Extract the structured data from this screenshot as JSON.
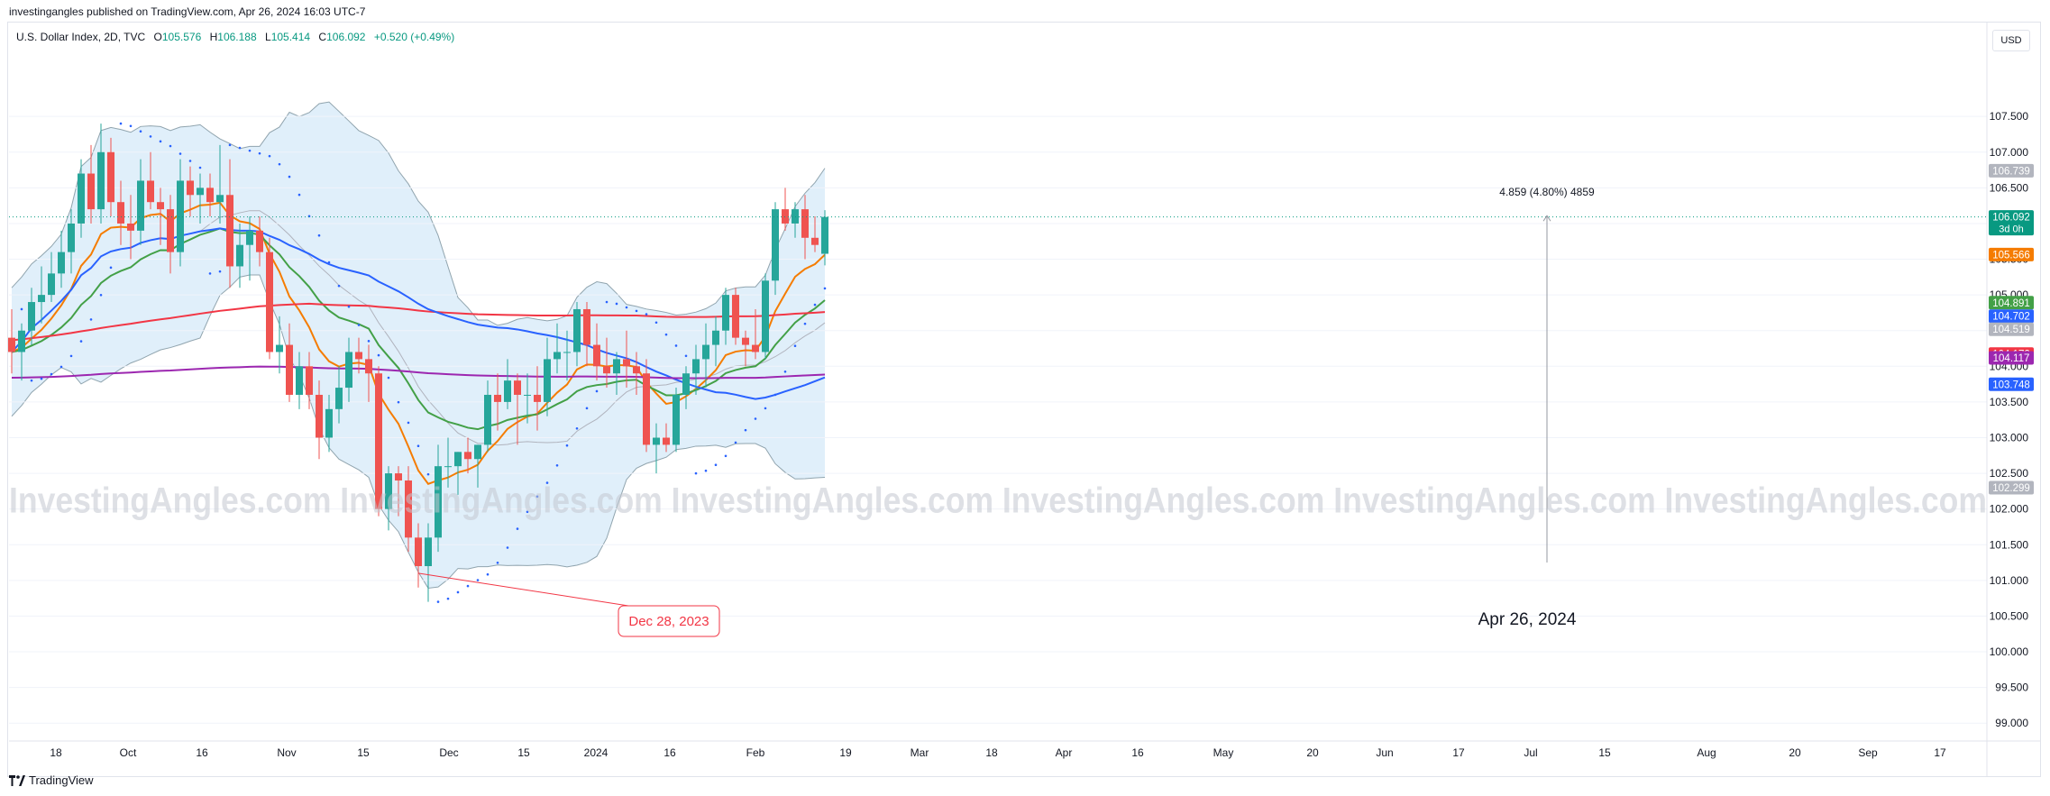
{
  "header": {
    "published": "investingangles published on TradingView.com, Apr 26, 2024 16:03 UTC-7"
  },
  "legend": {
    "symbol": "U.S. Dollar Index, 2D, TVC",
    "o_label": "O",
    "o": "105.576",
    "h_label": "H",
    "h": "106.188",
    "l_label": "L",
    "l": "105.414",
    "c_label": "C",
    "c": "106.092",
    "change": "+0.520 (+0.49%)"
  },
  "currency_button": "USD",
  "footer": {
    "brand": "TradingView"
  },
  "chart_data": {
    "type": "candlestick",
    "timeframe": "2D",
    "watermark": "InvestingAngles.com",
    "x_tick_labels": [
      "18",
      "Oct",
      "16",
      "Nov",
      "15",
      "Dec",
      "15",
      "2024",
      "16",
      "Feb",
      "19",
      "Mar",
      "18",
      "Apr",
      "16",
      "May",
      "20",
      "Jun",
      "17",
      "Jul",
      "15",
      "Aug",
      "20",
      "Sep",
      "17"
    ],
    "y_tick_labels": [
      "107.500",
      "107.000",
      "106.500",
      "106.000",
      "105.500",
      "105.000",
      "104.500",
      "104.000",
      "103.500",
      "103.000",
      "102.500",
      "102.000",
      "101.500",
      "101.000",
      "100.500",
      "100.000",
      "99.500",
      "99.000"
    ],
    "ylim": [
      98.75,
      108.5
    ],
    "price_tags": [
      {
        "value": "106.739",
        "color": "#b2b5be"
      },
      {
        "value": "106.092",
        "sub": "3d 0h",
        "color": "#089981"
      },
      {
        "value": "105.566",
        "color": "#f57c00"
      },
      {
        "value": "104.891",
        "color": "#43a047"
      },
      {
        "value": "104.702",
        "color": "#2962ff"
      },
      {
        "value": "104.519",
        "color": "#b2b5be"
      },
      {
        "value": "104.172",
        "color": "#f23645"
      },
      {
        "value": "104.117",
        "color": "#9c27b0"
      },
      {
        "value": "103.748",
        "color": "#2962ff"
      },
      {
        "value": "102.299",
        "color": "#b2b5be"
      }
    ],
    "candles": [
      [
        104.4,
        104.8,
        103.9,
        104.2
      ],
      [
        104.2,
        104.6,
        103.8,
        104.5
      ],
      [
        104.5,
        105.1,
        104.3,
        104.9
      ],
      [
        104.9,
        105.4,
        104.6,
        105.0
      ],
      [
        105.0,
        105.6,
        104.9,
        105.3
      ],
      [
        105.3,
        105.9,
        105.1,
        105.6
      ],
      [
        105.6,
        106.2,
        105.3,
        106.0
      ],
      [
        106.0,
        106.9,
        105.8,
        106.7
      ],
      [
        106.7,
        107.1,
        106.0,
        106.2
      ],
      [
        106.2,
        107.4,
        106.0,
        107.0
      ],
      [
        107.0,
        107.2,
        106.1,
        106.3
      ],
      [
        106.3,
        106.6,
        105.7,
        106.0
      ],
      [
        106.0,
        106.4,
        105.5,
        105.9
      ],
      [
        105.9,
        106.9,
        105.7,
        106.6
      ],
      [
        106.6,
        107.0,
        106.2,
        106.3
      ],
      [
        106.3,
        106.5,
        105.7,
        106.2
      ],
      [
        106.2,
        106.4,
        105.3,
        105.6
      ],
      [
        105.6,
        106.9,
        105.4,
        106.6
      ],
      [
        106.6,
        106.8,
        106.1,
        106.4
      ],
      [
        106.4,
        106.7,
        106.0,
        106.5
      ],
      [
        106.5,
        106.7,
        106.1,
        106.3
      ],
      [
        106.3,
        107.1,
        106.0,
        106.4
      ],
      [
        106.4,
        106.9,
        105.1,
        105.4
      ],
      [
        105.4,
        106.0,
        105.1,
        105.7
      ],
      [
        105.7,
        106.1,
        105.2,
        105.9
      ],
      [
        105.9,
        106.1,
        105.4,
        105.6
      ],
      [
        105.6,
        105.8,
        104.1,
        104.2
      ],
      [
        104.2,
        104.7,
        103.9,
        104.3
      ],
      [
        104.3,
        104.6,
        103.5,
        103.6
      ],
      [
        103.6,
        104.2,
        103.4,
        104.0
      ],
      [
        104.0,
        104.2,
        103.4,
        103.6
      ],
      [
        103.6,
        103.8,
        102.7,
        103.0
      ],
      [
        103.0,
        103.6,
        102.8,
        103.4
      ],
      [
        103.4,
        104.0,
        103.2,
        103.7
      ],
      [
        103.7,
        104.4,
        103.5,
        104.2
      ],
      [
        104.2,
        104.4,
        103.9,
        104.1
      ],
      [
        104.1,
        104.3,
        103.5,
        103.9
      ],
      [
        103.9,
        104.0,
        101.9,
        102.0
      ],
      [
        102.0,
        102.6,
        101.7,
        102.5
      ],
      [
        102.5,
        102.6,
        101.9,
        102.4
      ],
      [
        102.4,
        102.6,
        101.4,
        101.6
      ],
      [
        101.6,
        101.8,
        100.9,
        101.2
      ],
      [
        101.2,
        101.8,
        100.7,
        101.6
      ],
      [
        101.6,
        102.9,
        101.4,
        102.6
      ],
      [
        102.6,
        103.0,
        102.3,
        102.6
      ],
      [
        102.6,
        102.8,
        102.2,
        102.8
      ],
      [
        102.8,
        103.0,
        102.5,
        102.7
      ],
      [
        102.7,
        102.9,
        102.3,
        102.9
      ],
      [
        102.9,
        103.8,
        102.8,
        103.6
      ],
      [
        103.6,
        103.9,
        103.1,
        103.5
      ],
      [
        103.5,
        104.1,
        103.4,
        103.8
      ],
      [
        103.8,
        103.9,
        102.9,
        103.6
      ],
      [
        103.6,
        103.9,
        103.2,
        103.6
      ],
      [
        103.6,
        104.0,
        103.1,
        103.5
      ],
      [
        103.5,
        104.4,
        103.3,
        104.1
      ],
      [
        104.1,
        104.6,
        103.9,
        104.2
      ],
      [
        104.2,
        104.5,
        103.8,
        104.2
      ],
      [
        104.2,
        104.9,
        104.0,
        104.8
      ],
      [
        104.8,
        104.9,
        104.0,
        104.3
      ],
      [
        104.3,
        104.6,
        103.8,
        104.0
      ],
      [
        104.0,
        104.4,
        103.7,
        103.9
      ],
      [
        103.9,
        104.2,
        103.6,
        104.1
      ],
      [
        104.1,
        104.5,
        103.7,
        104.0
      ],
      [
        104.0,
        104.2,
        103.6,
        103.9
      ],
      [
        103.9,
        104.1,
        102.8,
        102.9
      ],
      [
        102.9,
        103.2,
        102.5,
        103.0
      ],
      [
        103.0,
        103.2,
        102.8,
        102.9
      ],
      [
        102.9,
        103.7,
        102.8,
        103.6
      ],
      [
        103.6,
        104.0,
        103.4,
        103.9
      ],
      [
        103.9,
        104.3,
        103.6,
        104.1
      ],
      [
        104.1,
        104.6,
        103.7,
        104.3
      ],
      [
        104.3,
        104.7,
        104.0,
        104.5
      ],
      [
        104.5,
        105.1,
        104.3,
        105.0
      ],
      [
        105.0,
        105.1,
        104.3,
        104.4
      ],
      [
        104.4,
        104.5,
        104.0,
        104.3
      ],
      [
        104.3,
        104.8,
        104.1,
        104.2
      ],
      [
        104.2,
        105.3,
        104.1,
        105.2
      ],
      [
        105.2,
        106.3,
        105.0,
        106.2
      ],
      [
        106.2,
        106.5,
        105.9,
        106.0
      ],
      [
        106.0,
        106.3,
        105.8,
        106.2
      ],
      [
        106.2,
        106.4,
        105.5,
        105.8
      ],
      [
        105.8,
        106.1,
        105.6,
        105.7
      ],
      [
        105.576,
        106.188,
        105.414,
        106.092
      ]
    ],
    "indicators": [
      {
        "type": "bollinger_bands"
      },
      {
        "type": "moving_average",
        "color": "#f57c00"
      },
      {
        "type": "moving_average",
        "color": "#43a047"
      },
      {
        "type": "moving_average",
        "color": "#f23645"
      },
      {
        "type": "moving_average",
        "color": "#2962ff"
      },
      {
        "type": "moving_average",
        "color": "#9c27b0"
      },
      {
        "type": "parabolic_sar"
      }
    ],
    "measure": {
      "label": "4.859 (4.80%) 4859",
      "from": 101.25,
      "to": 106.11
    },
    "callouts": [
      {
        "label": "Dec 28, 2023"
      },
      {
        "label": "Apr 26, 2024"
      }
    ],
    "colors": {
      "up": "#26a69a",
      "down": "#ef5350",
      "band_fill": "#d6eaf8",
      "crosshair": "#089981"
    }
  }
}
